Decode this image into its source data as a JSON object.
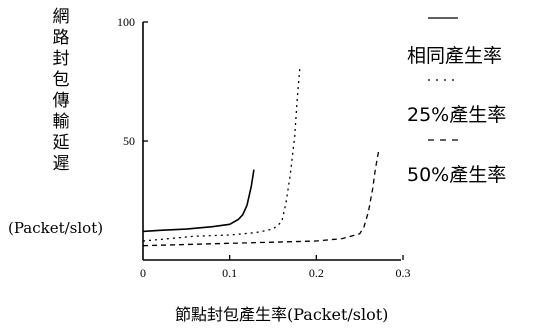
{
  "chart_data": {
    "type": "line",
    "ylabel": "網路封包傳輸延遲",
    "yunit": "(Packet/slot)",
    "xlabel": "節點封包產生率(Packet/slot)",
    "xlim": [
      0,
      0.3
    ],
    "ylim": [
      0,
      100
    ],
    "xticks": [
      "0",
      "0.1",
      "0.2",
      "0.3"
    ],
    "yticks": [
      "100",
      "50"
    ],
    "legend_position": "right",
    "series": [
      {
        "name": "相同產生率",
        "dash": "solid",
        "x": [
          0,
          0.02,
          0.05,
          0.08,
          0.1,
          0.11,
          0.115,
          0.12,
          0.125,
          0.128
        ],
        "y": [
          12,
          12.5,
          13,
          14,
          15,
          17,
          19,
          23,
          31,
          38
        ]
      },
      {
        "name": "25%產生率",
        "dash": "dotted",
        "x": [
          0,
          0.03,
          0.06,
          0.1,
          0.13,
          0.15,
          0.16,
          0.165,
          0.17,
          0.175,
          0.178,
          0.181
        ],
        "y": [
          8,
          9,
          10,
          10.5,
          11.5,
          13,
          16,
          24,
          36,
          52,
          68,
          81
        ]
      },
      {
        "name": "50%產生率",
        "dash": "dashed",
        "x": [
          0,
          0.05,
          0.1,
          0.15,
          0.2,
          0.23,
          0.25,
          0.255,
          0.26,
          0.265,
          0.268,
          0.272
        ],
        "y": [
          6,
          6.5,
          7,
          7.5,
          8,
          9,
          11,
          14,
          20,
          30,
          38,
          46
        ]
      }
    ]
  }
}
